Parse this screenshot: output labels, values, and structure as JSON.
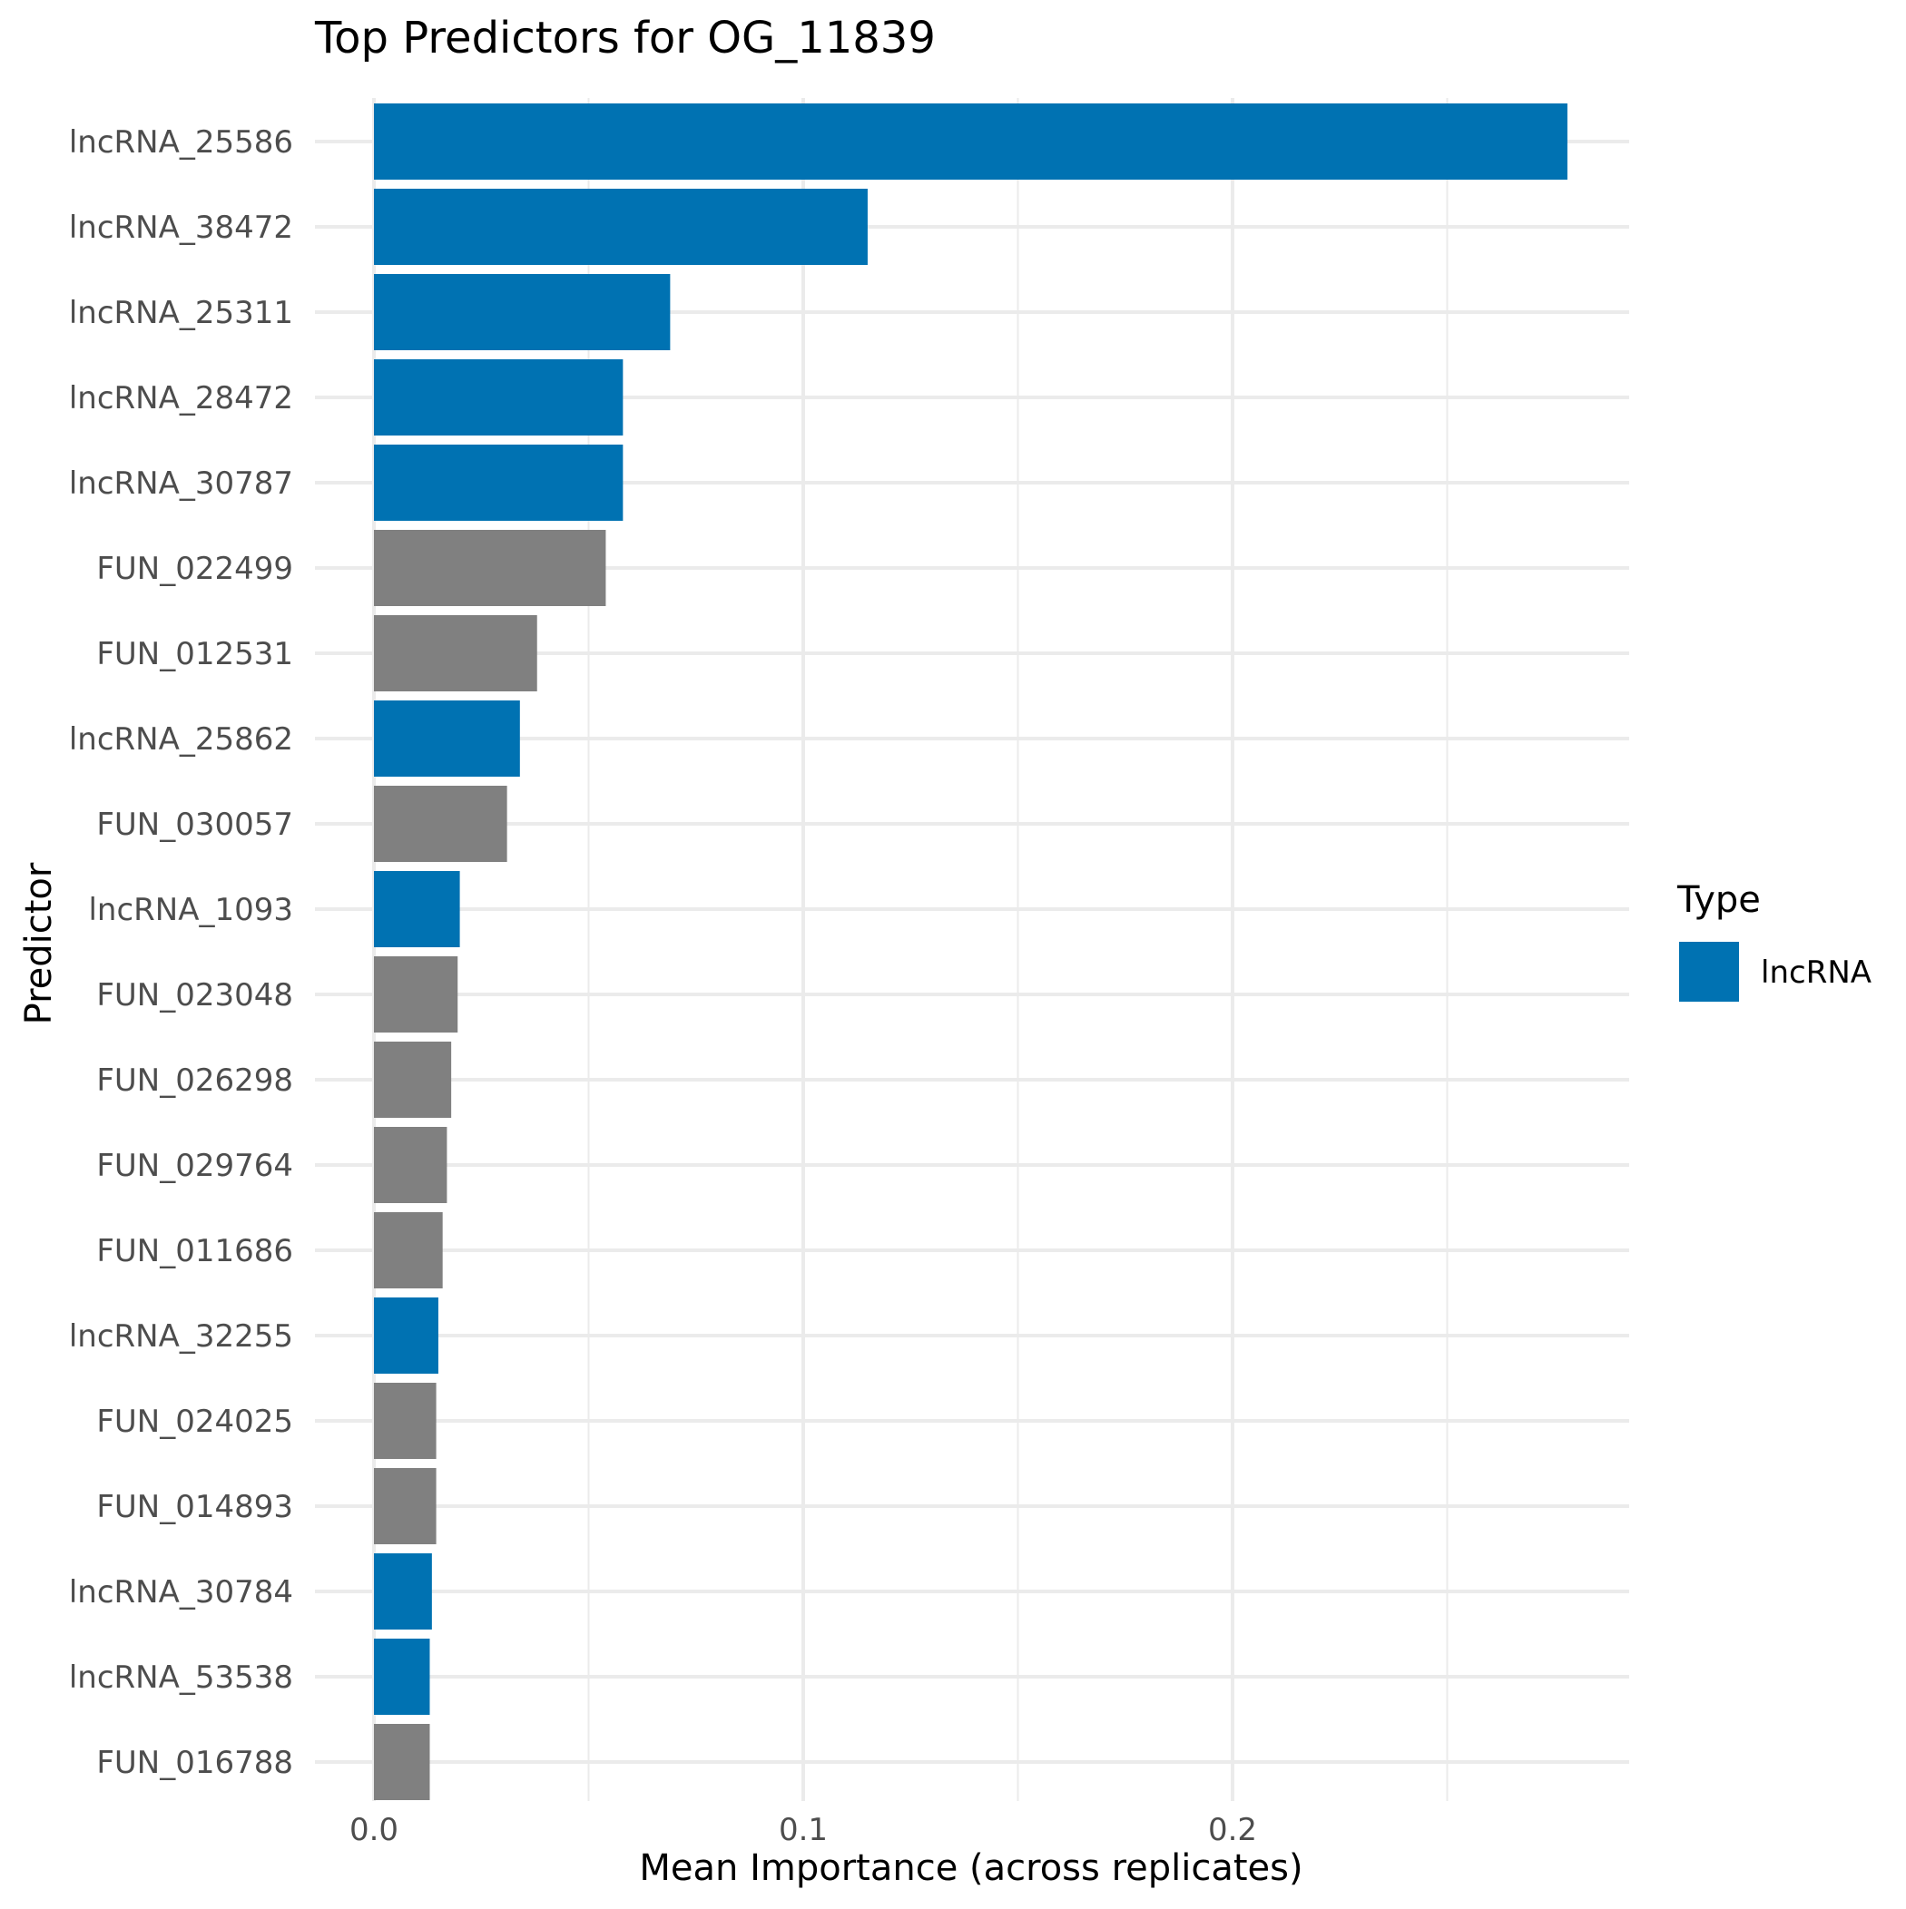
{
  "chart_data": {
    "type": "bar",
    "orientation": "horizontal",
    "title": "Top Predictors for OG_11839",
    "xlabel": "Mean Importance (across replicates)",
    "ylabel": "Predictor",
    "xlim": [
      0,
      0.29
    ],
    "x_ticks": [
      0.0,
      0.1,
      0.2
    ],
    "x_tick_labels": [
      "0.0",
      "0.1",
      "0.2"
    ],
    "grid": true,
    "categories": [
      "lncRNA_25586",
      "lncRNA_38472",
      "lncRNA_25311",
      "lncRNA_28472",
      "lncRNA_30787",
      "FUN_022499",
      "FUN_012531",
      "lncRNA_25862",
      "FUN_030057",
      "lncRNA_1093",
      "FUN_023048",
      "FUN_026298",
      "FUN_029764",
      "FUN_011686",
      "lncRNA_32255",
      "FUN_024025",
      "FUN_014893",
      "lncRNA_30784",
      "lncRNA_53538",
      "FUN_016788"
    ],
    "values": [
      0.278,
      0.115,
      0.069,
      0.058,
      0.058,
      0.054,
      0.038,
      0.034,
      0.031,
      0.02,
      0.0195,
      0.018,
      0.017,
      0.016,
      0.015,
      0.0145,
      0.0145,
      0.0135,
      0.013,
      0.013
    ],
    "types": [
      "lncRNA",
      "lncRNA",
      "lncRNA",
      "lncRNA",
      "lncRNA",
      "gene",
      "gene",
      "lncRNA",
      "gene",
      "lncRNA",
      "gene",
      "gene",
      "gene",
      "gene",
      "lncRNA",
      "gene",
      "gene",
      "lncRNA",
      "lncRNA",
      "gene"
    ],
    "colors": {
      "lncRNA": "#0072B2",
      "gene": "#808080"
    },
    "legend": {
      "title": "Type",
      "position": "right",
      "entries": [
        {
          "label": "lncRNA",
          "color": "#0072B2"
        }
      ]
    }
  }
}
